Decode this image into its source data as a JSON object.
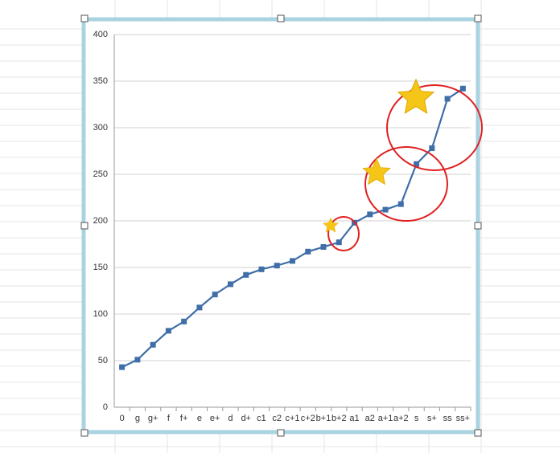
{
  "chart_data": {
    "type": "line",
    "categories": [
      "0",
      "g",
      "g+",
      "f",
      "f+",
      "e",
      "e+",
      "d",
      "d+",
      "c1",
      "c2",
      "c+1",
      "c+2",
      "b+1",
      "b+2",
      "a1",
      "a2",
      "a+1",
      "a+2",
      "s",
      "s+",
      "ss",
      "ss+"
    ],
    "values": [
      43,
      51,
      67,
      82,
      92,
      107,
      121,
      132,
      142,
      148,
      152,
      157,
      167,
      172,
      177,
      198,
      207,
      212,
      218,
      261,
      278,
      331,
      342
    ],
    "color": "#3f6ea8",
    "ylim": [
      0,
      400
    ],
    "yticks": [
      0,
      50,
      100,
      150,
      200,
      250,
      300,
      350,
      400
    ],
    "grid": true
  }
}
